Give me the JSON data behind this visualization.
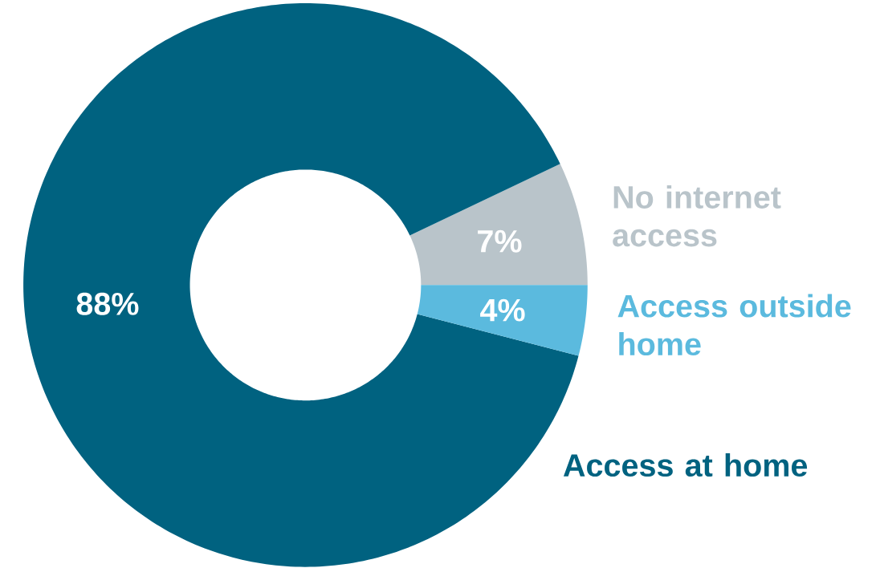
{
  "chart_data": {
    "type": "donut",
    "categories": [
      "No internet access",
      "Access at home",
      "Access outside home"
    ],
    "values": [
      7,
      88,
      4
    ],
    "colors": [
      "#b9c4ca",
      "#006280",
      "#5bbade"
    ],
    "value_labels": [
      "7%",
      "88%",
      "4%"
    ]
  }
}
